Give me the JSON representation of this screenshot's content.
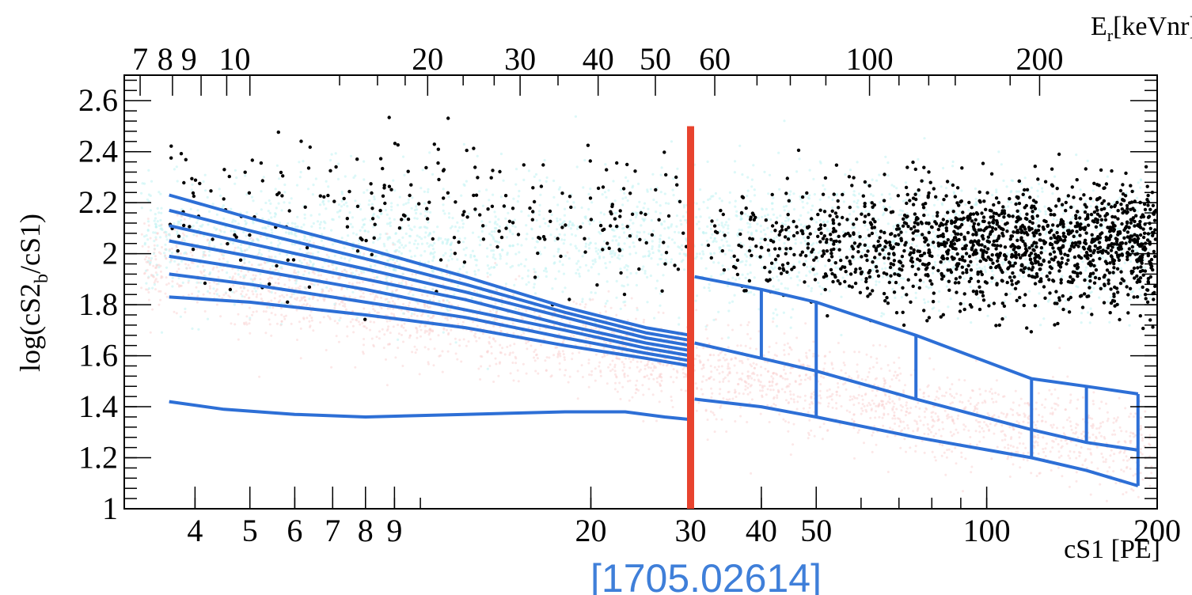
{
  "chart_data": {
    "type": "scatter",
    "title": "",
    "xlabel": "cS1  [PE]",
    "ylabel": "log(cS2",
    "ylabel_sub": "b",
    "ylabel_tail": "/cS1)",
    "x2label": "E",
    "x2label_sub": "r",
    "x2label_tail": "[keVnr]",
    "x_scale": "log",
    "xlim": [
      3.0,
      200
    ],
    "ylim": [
      1.0,
      2.7
    ],
    "x_ticks": [
      4,
      5,
      6,
      7,
      8,
      9,
      20,
      30,
      40,
      50,
      100,
      200
    ],
    "x_tick_labels": [
      "4",
      "5",
      "6",
      "7",
      "8",
      "9",
      "20",
      "30",
      "40",
      "50",
      "100",
      "200"
    ],
    "y_ticks": [
      1,
      1.2,
      1.4,
      1.6,
      1.8,
      2,
      2.2,
      2.4,
      2.6
    ],
    "y_tick_labels": [
      "1",
      "1.2",
      "1.4",
      "1.6",
      "1.8",
      "2",
      "2.2",
      "2.4",
      "2.6"
    ],
    "x2_ticks_at_cs1": [
      3.2,
      3.65,
      4.1,
      4.55,
      5.0,
      10.3,
      15.0,
      20.6,
      26.0,
      33.1,
      62.1,
      124
    ],
    "x2_tick_labels": [
      "7",
      "8",
      "9",
      "10",
      "",
      "20",
      "30",
      "40",
      "50",
      "60",
      "100",
      "200"
    ],
    "x2_ticks_label_text": [
      "7",
      "8 9",
      "10",
      "20",
      "30",
      "40",
      "50",
      "60",
      "100",
      "200"
    ],
    "cut_line": {
      "x": 30,
      "y_top": 2.5,
      "color": "#E8432E"
    },
    "series": [
      {
        "x": [
          3.6,
          5,
          8,
          12,
          18,
          25,
          30
        ],
        "y": [
          2.23,
          2.14,
          2.02,
          1.91,
          1.79,
          1.71,
          1.68
        ]
      },
      {
        "x": [
          3.6,
          5,
          8,
          12,
          18,
          25,
          30
        ],
        "y": [
          2.17,
          2.09,
          1.98,
          1.88,
          1.77,
          1.69,
          1.66
        ]
      },
      {
        "x": [
          3.6,
          5,
          8,
          12,
          18,
          25,
          30
        ],
        "y": [
          2.11,
          2.04,
          1.94,
          1.85,
          1.75,
          1.67,
          1.64
        ]
      },
      {
        "x": [
          3.6,
          5,
          8,
          12,
          18,
          25,
          30
        ],
        "y": [
          2.05,
          1.99,
          1.9,
          1.82,
          1.72,
          1.65,
          1.62
        ]
      },
      {
        "x": [
          3.6,
          5,
          8,
          12,
          18,
          25,
          30
        ],
        "y": [
          1.99,
          1.94,
          1.86,
          1.78,
          1.7,
          1.63,
          1.6
        ]
      },
      {
        "x": [
          3.6,
          5,
          8,
          12,
          18,
          25,
          30
        ],
        "y": [
          1.92,
          1.88,
          1.81,
          1.75,
          1.67,
          1.61,
          1.58
        ]
      },
      {
        "x": [
          3.6,
          5,
          8,
          12,
          18,
          25,
          30
        ],
        "y": [
          1.83,
          1.81,
          1.76,
          1.71,
          1.64,
          1.59,
          1.56
        ]
      },
      {
        "x": [
          3.6,
          4.5,
          6,
          8,
          12,
          18,
          23,
          27,
          30
        ],
        "y": [
          1.42,
          1.39,
          1.37,
          1.36,
          1.37,
          1.38,
          1.38,
          1.36,
          1.35
        ]
      },
      {
        "x": [
          30.5,
          40,
          50,
          75,
          120,
          150,
          185
        ],
        "y": [
          1.91,
          1.86,
          1.81,
          1.68,
          1.51,
          1.48,
          1.45
        ]
      },
      {
        "x": [
          30.5,
          40,
          50,
          75,
          120,
          150,
          185
        ],
        "y": [
          1.65,
          1.59,
          1.54,
          1.43,
          1.31,
          1.26,
          1.23
        ]
      },
      {
        "x": [
          30.5,
          40,
          50,
          75,
          120,
          150,
          185
        ],
        "y": [
          1.43,
          1.4,
          1.36,
          1.28,
          1.2,
          1.15,
          1.09
        ]
      }
    ],
    "bin_edges": [
      {
        "x": 40,
        "y_low": 1.59,
        "y_high": 1.86
      },
      {
        "x": 50,
        "y_low": 1.36,
        "y_high": 1.81
      },
      {
        "x": 75,
        "y_low": 1.43,
        "y_high": 1.68
      },
      {
        "x": 120,
        "y_low": 1.2,
        "y_high": 1.51
      },
      {
        "x": 150,
        "y_low": 1.26,
        "y_high": 1.48
      },
      {
        "x": 185,
        "y_low": 1.09,
        "y_high": 1.45
      }
    ],
    "line_color": "#2D6FD6",
    "point_color": "#000000",
    "er_band_color": "#BFF2F2",
    "nr_band_color": "#F9CFCF",
    "annotation": "[1705.02614]"
  }
}
